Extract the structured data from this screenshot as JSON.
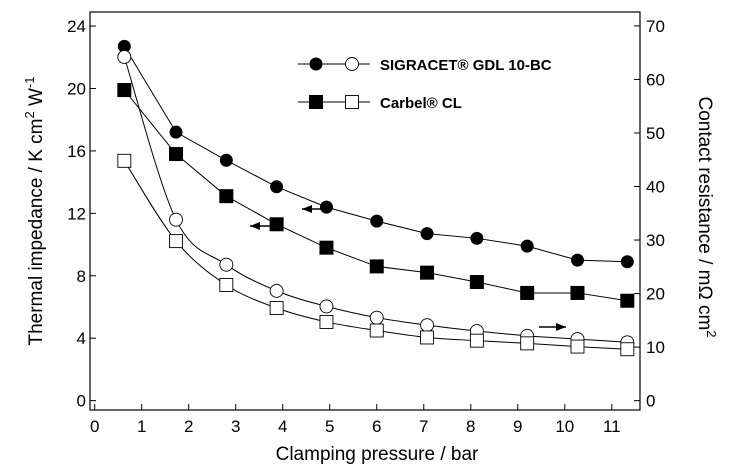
{
  "chart_data": {
    "type": "line",
    "xlabel": "Clamping pressure / bar",
    "ylabel_left": {
      "main": "Thermal impedance / K cm",
      "sup1": "2",
      "mid": " W",
      "sup2": "-1"
    },
    "ylabel_right": {
      "main": "Contact resistance / mΩ cm",
      "sup": "2"
    },
    "xlim": [
      -0.1,
      11.6
    ],
    "ylim_left": [
      -0.6,
      24.9
    ],
    "ylim_right": [
      -1.75,
      72.6
    ],
    "x_ticks": [
      0,
      1,
      2,
      3,
      4,
      5,
      6,
      7,
      8,
      9,
      10,
      11
    ],
    "y_ticks_left": [
      0,
      4,
      8,
      12,
      16,
      20,
      24
    ],
    "y_ticks_right": [
      0,
      10,
      20,
      30,
      40,
      50,
      60,
      70
    ],
    "x_tick_labels": [
      "0",
      "1",
      "2",
      "3",
      "4",
      "5",
      "6",
      "7",
      "8",
      "9",
      "10",
      "11"
    ],
    "y_tick_labels_left": [
      "0",
      "4",
      "8",
      "12",
      "16",
      "20",
      "24"
    ],
    "y_tick_labels_right": [
      "0",
      "10",
      "20",
      "30",
      "40",
      "50",
      "60",
      "70"
    ],
    "legend": [
      {
        "label": "SIGRACET® GDL 10-BC",
        "marker": "circle"
      },
      {
        "label": "Carbel® CL",
        "marker": "square"
      }
    ],
    "series": [
      {
        "name": "SIGRACET® GDL 10-BC thermal impedance",
        "axis": "left",
        "marker": "circle",
        "filled": true,
        "x": [
          0.63,
          1.73,
          2.8,
          3.87,
          4.93,
          6.0,
          7.07,
          8.13,
          9.2,
          10.27,
          11.33
        ],
        "y": [
          22.7,
          17.2,
          15.4,
          13.7,
          12.4,
          11.5,
          10.7,
          10.4,
          9.9,
          9.0,
          8.9
        ]
      },
      {
        "name": "Carbel® CL thermal impedance",
        "axis": "left",
        "marker": "square",
        "filled": true,
        "x": [
          0.63,
          1.73,
          2.8,
          3.87,
          4.93,
          6.0,
          7.07,
          8.13,
          9.2,
          10.27,
          11.33
        ],
        "y": [
          19.9,
          15.8,
          13.1,
          11.3,
          9.8,
          8.6,
          8.2,
          7.6,
          6.9,
          6.9,
          6.4
        ]
      },
      {
        "name": "SIGRACET® GDL 10-BC contact resistance",
        "axis": "right",
        "marker": "circle",
        "filled": false,
        "x": [
          0.63,
          1.73,
          2.8,
          3.87,
          4.93,
          6.0,
          7.07,
          8.13,
          9.2,
          10.27,
          11.33
        ],
        "y": [
          64.2,
          33.8,
          25.4,
          20.5,
          17.6,
          15.5,
          14.1,
          13.0,
          12.1,
          11.5,
          10.9
        ]
      },
      {
        "name": "Carbel® CL contact resistance",
        "axis": "right",
        "marker": "square",
        "filled": false,
        "x": [
          0.63,
          1.73,
          2.8,
          3.87,
          4.93,
          6.0,
          7.07,
          8.13,
          9.2,
          10.27,
          11.33
        ],
        "y": [
          44.8,
          29.8,
          21.6,
          17.3,
          14.7,
          13.1,
          11.8,
          11.2,
          10.7,
          10.1,
          9.6
        ]
      }
    ],
    "annotations": [
      {
        "type": "arrow",
        "direction": "left",
        "points_to": "left axis",
        "near_series": "SIGRACET® GDL 10-BC thermal impedance"
      },
      {
        "type": "arrow",
        "direction": "left",
        "points_to": "left axis",
        "near_series": "Carbel® CL thermal impedance"
      },
      {
        "type": "arrow",
        "direction": "right",
        "points_to": "right axis",
        "near_series": "contact resistance"
      }
    ]
  }
}
